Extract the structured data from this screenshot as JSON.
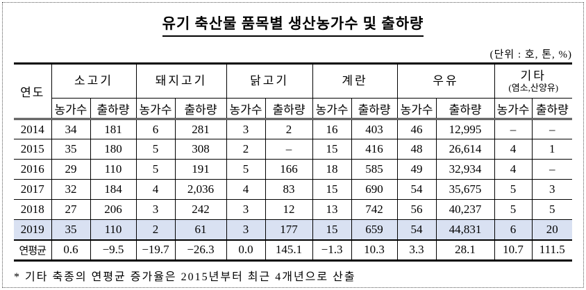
{
  "title": "유기 축산물 품목별 생산농가수 및 출하량",
  "units_note": "(단위 : 호, 톤, %)",
  "footnote": "* 기타 축종의 연평균 증가율은 2015년부터 최근 4개년으로 산출",
  "colors": {
    "highlight_row": "#d9e1f2",
    "border": "#000000"
  },
  "table": {
    "year_header": "연도",
    "sub_headers": {
      "farms": "농가수",
      "shipment": "출하량"
    },
    "groups": [
      {
        "label": "소고기",
        "sublabel": ""
      },
      {
        "label": "돼지고기",
        "sublabel": ""
      },
      {
        "label": "닭고기",
        "sublabel": ""
      },
      {
        "label": "계란",
        "sublabel": ""
      },
      {
        "label": "우유",
        "sublabel": ""
      },
      {
        "label": "기타",
        "sublabel": "(염소,산양유)"
      }
    ],
    "rows": [
      {
        "year": "2014",
        "values": [
          "34",
          "181",
          "6",
          "281",
          "3",
          "2",
          "16",
          "403",
          "46",
          "12,995",
          "–",
          "–"
        ],
        "highlight": false,
        "is_average": false
      },
      {
        "year": "2015",
        "values": [
          "35",
          "180",
          "5",
          "308",
          "2",
          "–",
          "15",
          "416",
          "48",
          "26,614",
          "4",
          "1"
        ],
        "highlight": false,
        "is_average": false
      },
      {
        "year": "2016",
        "values": [
          "29",
          "110",
          "5",
          "191",
          "5",
          "166",
          "18",
          "585",
          "49",
          "32,934",
          "4",
          "–"
        ],
        "highlight": false,
        "is_average": false
      },
      {
        "year": "2017",
        "values": [
          "32",
          "184",
          "4",
          "2,036",
          "4",
          "83",
          "15",
          "690",
          "54",
          "35,675",
          "5",
          "3"
        ],
        "highlight": false,
        "is_average": false
      },
      {
        "year": "2018",
        "values": [
          "27",
          "206",
          "3",
          "242",
          "3",
          "12",
          "13",
          "742",
          "56",
          "40,237",
          "5",
          "5"
        ],
        "highlight": false,
        "is_average": false
      },
      {
        "year": "2019",
        "values": [
          "35",
          "110",
          "2",
          "61",
          "3",
          "177",
          "15",
          "659",
          "54",
          "44,831",
          "6",
          "20"
        ],
        "highlight": true,
        "is_average": false
      },
      {
        "year": "연평균",
        "values": [
          "0.6",
          "−9.5",
          "−19.7",
          "−26.3",
          "0.0",
          "145.1",
          "−1.3",
          "10.3",
          "3.3",
          "28.1",
          "10.7",
          "111.5"
        ],
        "highlight": false,
        "is_average": true
      }
    ]
  }
}
